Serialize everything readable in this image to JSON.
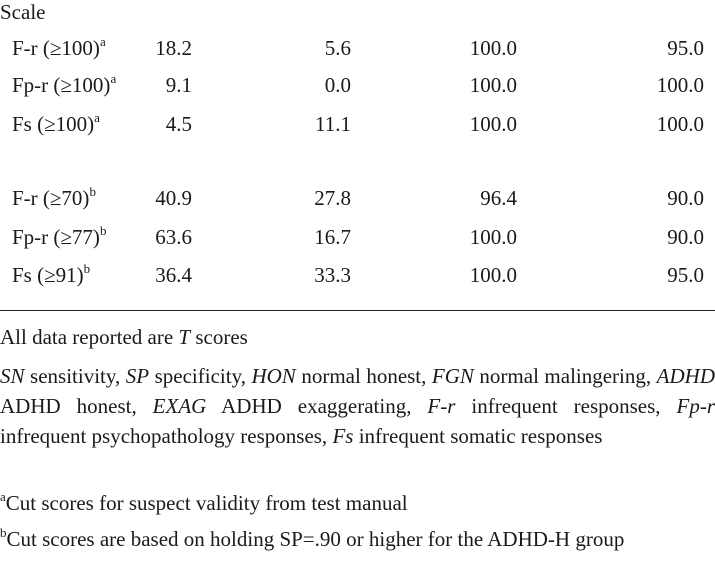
{
  "table": {
    "header_label": "Scale",
    "group1": [
      {
        "scale": "F-r (≥100)",
        "sup": "a",
        "v1": "18.2",
        "v2": "5.6",
        "v3": "100.0",
        "v4": "95.0"
      },
      {
        "scale": "Fp-r (≥100)",
        "sup": "a",
        "v1": "9.1",
        "v2": "0.0",
        "v3": "100.0",
        "v4": "100.0"
      },
      {
        "scale": "Fs (≥100)",
        "sup": "a",
        "v1": "4.5",
        "v2": "11.1",
        "v3": "100.0",
        "v4": "100.0"
      }
    ],
    "group2": [
      {
        "scale": "F-r (≥70)",
        "sup": "b",
        "v1": "40.9",
        "v2": "27.8",
        "v3": "96.4",
        "v4": "90.0"
      },
      {
        "scale": "Fp-r (≥77)",
        "sup": "b",
        "v1": "63.6",
        "v2": "16.7",
        "v3": "100.0",
        "v4": "90.0"
      },
      {
        "scale": "Fs (≥91)",
        "sup": "b",
        "v1": "36.4",
        "v2": "33.3",
        "v3": "100.0",
        "v4": "95.0"
      }
    ]
  },
  "notes": {
    "line1_prefix": "All data reported are ",
    "line1_italic": "T",
    "line1_suffix": " scores",
    "abbrev": [
      {
        "abbr": "SN",
        "desc": " sensitivity, "
      },
      {
        "abbr": "SP",
        "desc": " specificity, "
      },
      {
        "abbr": "HON",
        "desc": " normal honest, "
      },
      {
        "abbr": "FGN",
        "desc": " normal malingering, "
      },
      {
        "abbr": "ADHD",
        "desc": " ADHD honest, "
      },
      {
        "abbr": "EXAG",
        "desc": " ADHD exaggerating, "
      },
      {
        "abbr": "F-r",
        "desc": " infrequent responses, "
      },
      {
        "abbr": "Fp-r",
        "desc": " infrequent psychopathology responses, "
      },
      {
        "abbr": "Fs",
        "desc": " infrequent somatic responses"
      }
    ],
    "footnote_a_mark": "a",
    "footnote_a_text": "Cut scores for suspect validity from test manual",
    "footnote_b_mark": "b",
    "footnote_b_text": "Cut scores are based on holding SP=.90 or higher for the ADHD-H group"
  }
}
